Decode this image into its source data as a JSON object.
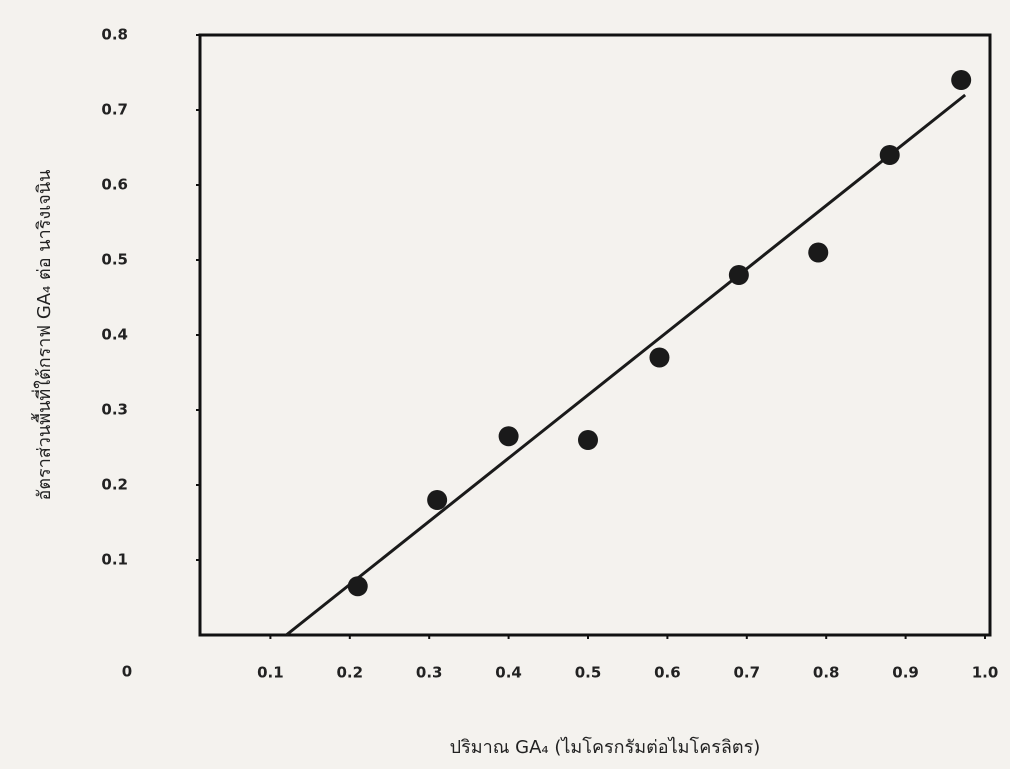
{
  "chart_data": {
    "type": "scatter",
    "x_label": "ปริมาณ GA₄ (ไมโครกรัมต่อไมโครลิตร)",
    "y_label": "อัตราส่วนพื้นที่ใต้กราฟ GA₄ ต่อ นาริงเจนิน",
    "origin_label": "0",
    "xlim": [
      0,
      1.0
    ],
    "ylim": [
      0,
      0.8
    ],
    "xticks": [
      0.1,
      0.2,
      0.3,
      0.4,
      0.5,
      0.6,
      0.7,
      0.8,
      0.9,
      {
        "value": 1.0,
        "label": "1.0"
      }
    ],
    "yticks": [
      0.1,
      0.2,
      0.3,
      0.4,
      0.5,
      0.6,
      0.7,
      0.8
    ],
    "series": [
      {
        "color": "#1a1a1a",
        "x": [
          0.21,
          0.31,
          0.4,
          0.5,
          0.59,
          0.69,
          0.79,
          0.88,
          0.97
        ],
        "values": [
          0.065,
          0.18,
          0.265,
          0.26,
          0.37,
          0.48,
          0.51,
          0.64,
          0.74
        ]
      }
    ],
    "fit_line": {
      "color": "#1a1a1a",
      "x": [
        0.12,
        0.975
      ],
      "values": [
        0,
        0.72
      ]
    }
  }
}
